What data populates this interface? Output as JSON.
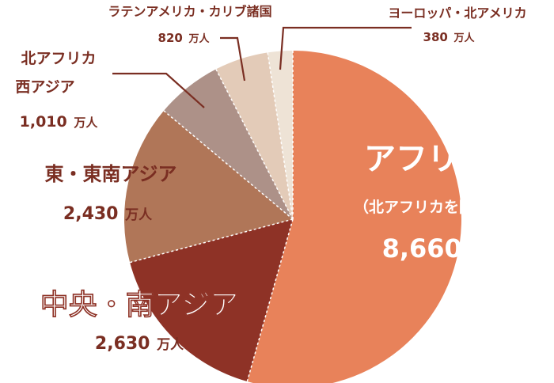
{
  "chart_data": {
    "type": "pie",
    "title": "",
    "unit": "万人",
    "slices": [
      {
        "name": "アフリカ",
        "note": "（北アフリカを除く）",
        "value": 8660,
        "value_text": "8,660",
        "color": "#e8825a"
      },
      {
        "name": "中央・南アジア",
        "value": 2630,
        "value_text": "2,630",
        "color": "#8e3226"
      },
      {
        "name": "東・東南アジア",
        "value": 2430,
        "value_text": "2,430",
        "color": "#b07658"
      },
      {
        "name": "北アフリカ 西アジア",
        "name_lines": [
          "北アフリカ",
          "西アジア"
        ],
        "value": 1010,
        "value_text": "1,010",
        "color": "#ad9188"
      },
      {
        "name": "ラテンアメリカ・カリブ諸国",
        "value": 820,
        "value_text": "820",
        "color": "#e3cbb8"
      },
      {
        "name": "ヨーロッパ・北アメリカ",
        "value": 380,
        "value_text": "380",
        "color": "#eee3d6"
      }
    ]
  }
}
